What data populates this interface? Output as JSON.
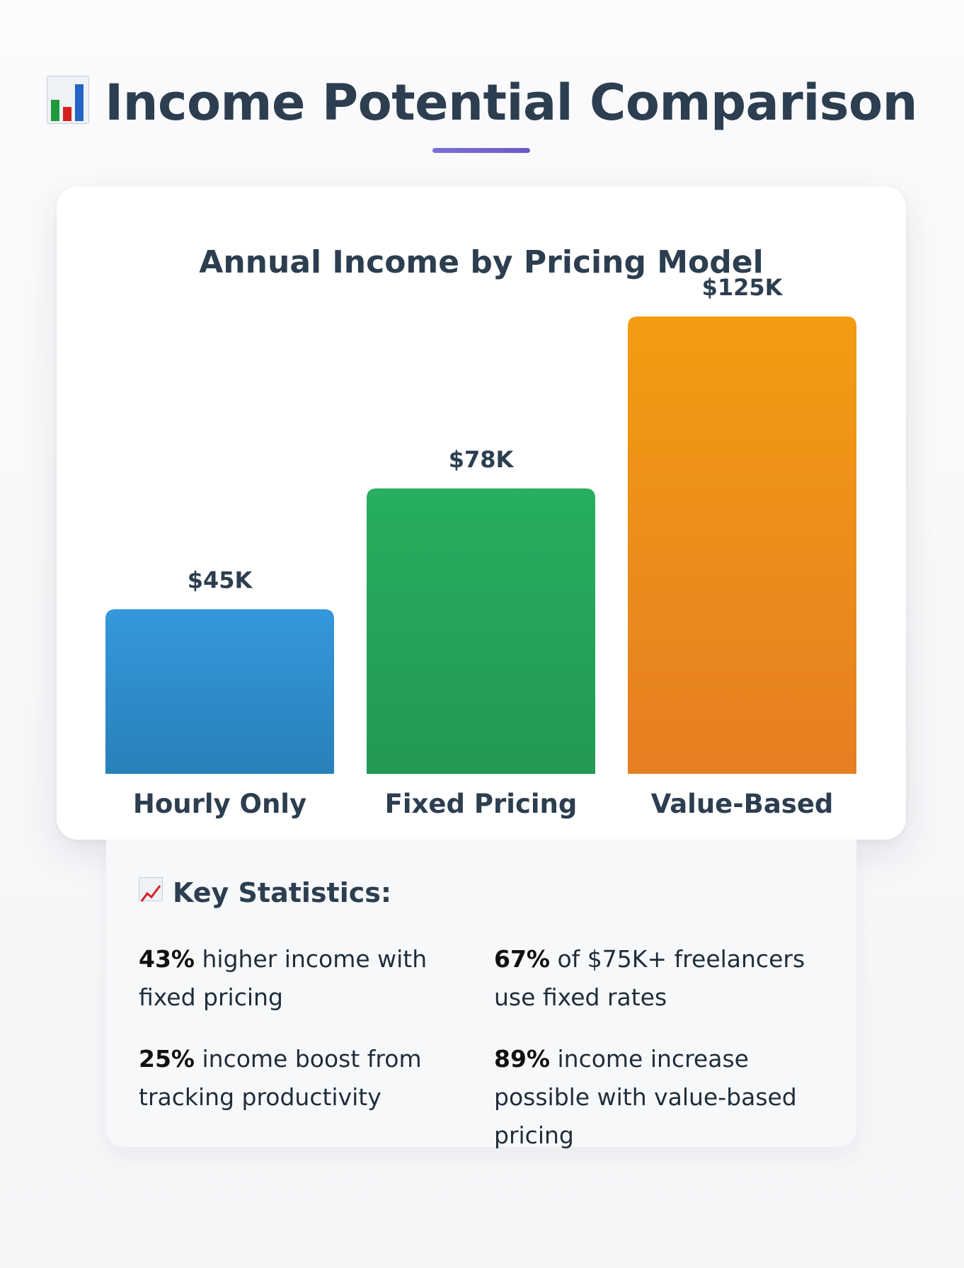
{
  "header": {
    "title": "Income Potential Comparison",
    "icon": "bar-chart-emoji"
  },
  "chart_data": {
    "type": "bar",
    "title": "Annual Income by Pricing Model",
    "categories": [
      "Hourly Only",
      "Fixed Pricing",
      "Value-Based"
    ],
    "values": [
      45,
      78,
      125
    ],
    "value_labels": [
      "$45K",
      "$78K",
      "$125K"
    ],
    "colors": [
      [
        "#3498db",
        "#2980b9"
      ],
      [
        "#27ae60",
        "#229954"
      ],
      [
        "#f39c12",
        "#e67e22"
      ]
    ],
    "grid": false,
    "legend": "none"
  },
  "stats": {
    "icon": "chart-increasing-emoji",
    "title": "Key Statistics:",
    "items": [
      {
        "value": "43%",
        "text": " higher income with fixed pricing"
      },
      {
        "value": "67%",
        "text": " of $75K+ freelancers use fixed rates"
      },
      {
        "value": "25%",
        "text": " income boost from tracking productivity"
      },
      {
        "value": "89%",
        "text": " income increase possible with value-based pricing"
      }
    ]
  }
}
